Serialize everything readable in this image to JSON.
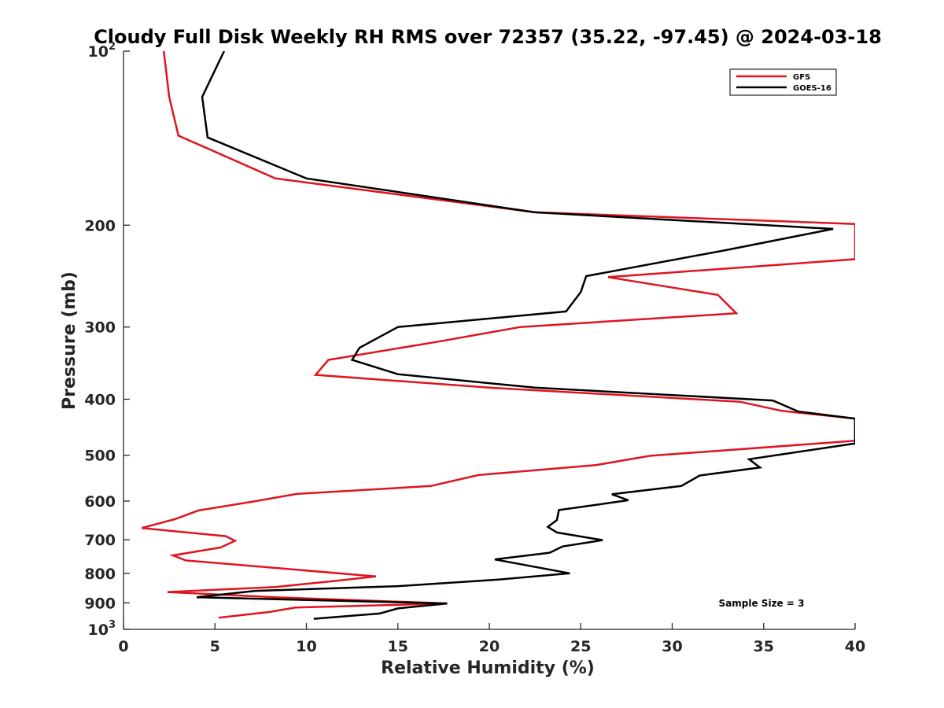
{
  "chart_data": {
    "type": "line",
    "title": "Cloudy Full Disk Weekly RH RMS over 72357 (35.22, -97.45) @ 2024-03-18",
    "xlabel": "Relative Humidity (%)",
    "ylabel": "Pressure (mb)",
    "xlim": [
      0,
      40
    ],
    "ylim": [
      100,
      1000
    ],
    "y_scale": "log",
    "y_reversed": true,
    "x_ticks": [
      0,
      5,
      10,
      15,
      20,
      25,
      30,
      35,
      40
    ],
    "x_tick_labels": [
      "0",
      "5",
      "10",
      "15",
      "20",
      "25",
      "30",
      "35",
      "40"
    ],
    "y_ticks": [
      {
        "value": 100,
        "base": "10",
        "sup": "2"
      },
      {
        "value": 200,
        "label": "200"
      },
      {
        "value": 300,
        "label": "300"
      },
      {
        "value": 400,
        "label": "400"
      },
      {
        "value": 500,
        "label": "500"
      },
      {
        "value": 600,
        "label": "600"
      },
      {
        "value": 700,
        "label": "700"
      },
      {
        "value": 800,
        "label": "800"
      },
      {
        "value": 900,
        "label": "900"
      },
      {
        "value": 1000,
        "base": "10",
        "sup": "3"
      }
    ],
    "legend": {
      "position": "top-right"
    },
    "annotation": "Sample Size = 3",
    "series": [
      {
        "name": "GFS",
        "color": "#e0141e",
        "points": [
          [
            2.2,
            100
          ],
          [
            2.5,
            120
          ],
          [
            3.0,
            140
          ],
          [
            8.3,
            166
          ],
          [
            22.5,
            190
          ],
          [
            40.0,
            199
          ],
          [
            40.0,
            229
          ],
          [
            26.5,
            246
          ],
          [
            32.5,
            264
          ],
          [
            33.5,
            284
          ],
          [
            21.7,
            300
          ],
          [
            17.2,
            318
          ],
          [
            11.2,
            342
          ],
          [
            10.5,
            363
          ],
          [
            20.0,
            382
          ],
          [
            33.7,
            404
          ],
          [
            36.0,
            419
          ],
          [
            40.0,
            432
          ],
          [
            40.0,
            472
          ],
          [
            28.8,
            501
          ],
          [
            25.8,
            520
          ],
          [
            19.4,
            541
          ],
          [
            16.8,
            565
          ],
          [
            9.5,
            583
          ],
          [
            7.1,
            601
          ],
          [
            4.1,
            623
          ],
          [
            2.8,
            645
          ],
          [
            1.0,
            668
          ],
          [
            5.6,
            690
          ],
          [
            6.1,
            703
          ],
          [
            5.3,
            722
          ],
          [
            2.7,
            745
          ],
          [
            3.4,
            760
          ],
          [
            13.8,
            810
          ],
          [
            11.5,
            825
          ],
          [
            8.3,
            845
          ],
          [
            2.4,
            862
          ],
          [
            8.3,
            880
          ],
          [
            17.7,
            902
          ],
          [
            9.4,
            917
          ],
          [
            8.0,
            933
          ],
          [
            5.2,
            955
          ]
        ]
      },
      {
        "name": "GOES-16",
        "color": "#000000",
        "points": [
          [
            5.5,
            100
          ],
          [
            4.3,
            120
          ],
          [
            4.6,
            141
          ],
          [
            10.0,
            166
          ],
          [
            22.5,
            190
          ],
          [
            38.8,
            203
          ],
          [
            32.9,
            221
          ],
          [
            25.3,
            245
          ],
          [
            25.0,
            261
          ],
          [
            24.2,
            282
          ],
          [
            15.0,
            300
          ],
          [
            12.9,
            326
          ],
          [
            12.5,
            342
          ],
          [
            15.0,
            362
          ],
          [
            22.5,
            382
          ],
          [
            35.5,
            402
          ],
          [
            36.9,
            420
          ],
          [
            40.0,
            432
          ],
          [
            40.0,
            477
          ],
          [
            34.2,
            508
          ],
          [
            34.8,
            525
          ],
          [
            31.5,
            542
          ],
          [
            30.5,
            565
          ],
          [
            26.7,
            584
          ],
          [
            27.6,
            598
          ],
          [
            23.8,
            622
          ],
          [
            23.7,
            647
          ],
          [
            23.2,
            665
          ],
          [
            23.7,
            680
          ],
          [
            26.2,
            701
          ],
          [
            24.0,
            719
          ],
          [
            23.3,
            737
          ],
          [
            20.3,
            757
          ],
          [
            24.4,
            800
          ],
          [
            20.5,
            820
          ],
          [
            15.0,
            842
          ],
          [
            7.2,
            858
          ],
          [
            4.0,
            880
          ],
          [
            17.7,
            902
          ],
          [
            15.0,
            920
          ],
          [
            14.0,
            939
          ],
          [
            10.4,
            959
          ]
        ]
      }
    ]
  }
}
